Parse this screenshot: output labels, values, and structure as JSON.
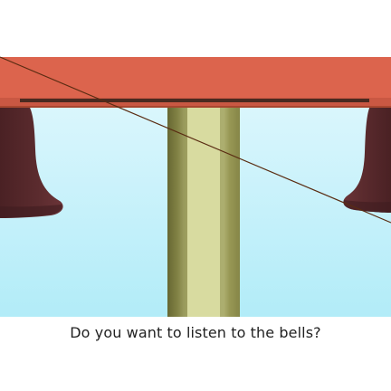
{
  "scene": {
    "sky_top_color": "#eefbff",
    "sky_bottom_color": "#b2ecf8",
    "beam_color": "#dc644d",
    "bell_color": "#5b2b2e",
    "post_color": "#d6d99b",
    "post_shade_color": "#7f7f44",
    "rope_color": "#5a2c12"
  },
  "prompt": {
    "question": "Do you want to listen to the bells?"
  }
}
